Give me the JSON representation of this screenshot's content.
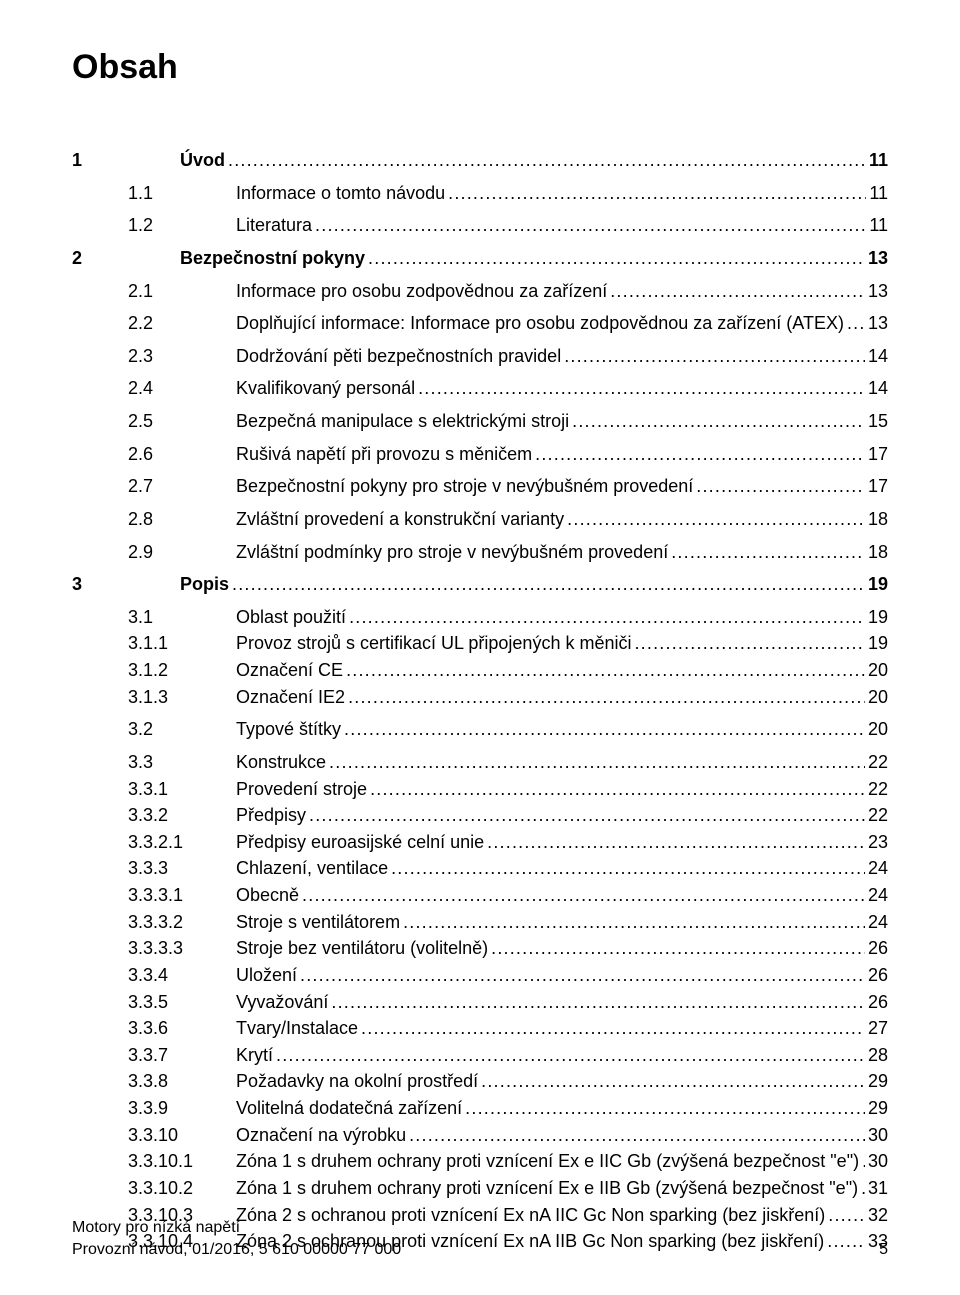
{
  "title": "Obsah",
  "footer": {
    "line1": "Motory pro nízká napětí",
    "line2_left": "Provozní návod, 01/2016, 5 610 00000 77 000",
    "line2_right": "5"
  },
  "toc": [
    {
      "bold": true,
      "num": "1",
      "label": "Úvod",
      "page": "11",
      "spacer": true
    },
    {
      "bold": false,
      "num": "1.1",
      "label": "Informace o tomto návodu",
      "page": "11",
      "spacer": true
    },
    {
      "bold": false,
      "num": "1.2",
      "label": "Literatura",
      "page": "11",
      "spacer": true
    },
    {
      "bold": true,
      "num": "2",
      "label": "Bezpečnostní pokyny",
      "page": "13",
      "spacer": true
    },
    {
      "bold": false,
      "num": "2.1",
      "label": "Informace pro osobu zodpovědnou za zařízení",
      "page": "13",
      "spacer": true
    },
    {
      "bold": false,
      "num": "2.2",
      "label": "Doplňující informace: Informace pro osobu zodpovědnou za zařízení (ATEX)",
      "page": "13",
      "spacer": true
    },
    {
      "bold": false,
      "num": "2.3",
      "label": "Dodržování pěti bezpečnostních pravidel",
      "page": "14",
      "spacer": true
    },
    {
      "bold": false,
      "num": "2.4",
      "label": "Kvalifikovaný personál",
      "page": "14",
      "spacer": true
    },
    {
      "bold": false,
      "num": "2.5",
      "label": "Bezpečná manipulace s elektrickými stroji",
      "page": "15",
      "spacer": true
    },
    {
      "bold": false,
      "num": "2.6",
      "label": "Rušivá napětí při provozu s měničem",
      "page": "17",
      "spacer": true
    },
    {
      "bold": false,
      "num": "2.7",
      "label": "Bezpečnostní pokyny pro stroje v nevýbušném provedení",
      "page": "17",
      "spacer": true
    },
    {
      "bold": false,
      "num": "2.8",
      "label": "Zvláštní provedení a konstrukční varianty",
      "page": "18",
      "spacer": true
    },
    {
      "bold": false,
      "num": "2.9",
      "label": "Zvláštní podmínky pro stroje v nevýbušném provedení",
      "page": "18",
      "spacer": true
    },
    {
      "bold": true,
      "num": "3",
      "label": "Popis",
      "page": "19",
      "spacer": true
    },
    {
      "bold": false,
      "num": "3.1",
      "label": "Oblast použití",
      "page": "19",
      "spacer": true
    },
    {
      "bold": false,
      "num": "3.1.1",
      "label": "Provoz strojů s certifikací UL připojených k měniči",
      "page": "19",
      "spacer": false
    },
    {
      "bold": false,
      "num": "3.1.2",
      "label": "Označení CE",
      "page": "20",
      "spacer": false
    },
    {
      "bold": false,
      "num": "3.1.3",
      "label": "Označení IE2",
      "page": "20",
      "spacer": false
    },
    {
      "bold": false,
      "num": "3.2",
      "label": "Typové štítky",
      "page": "20",
      "spacer": true
    },
    {
      "bold": false,
      "num": "3.3",
      "label": "Konstrukce",
      "page": "22",
      "spacer": true
    },
    {
      "bold": false,
      "num": "3.3.1",
      "label": "Provedení stroje",
      "page": "22",
      "spacer": false
    },
    {
      "bold": false,
      "num": "3.3.2",
      "label": "Předpisy",
      "page": "22",
      "spacer": false
    },
    {
      "bold": false,
      "num": "3.3.2.1",
      "label": "Předpisy euroasijské celní unie",
      "page": "23",
      "spacer": false
    },
    {
      "bold": false,
      "num": "3.3.3",
      "label": "Chlazení, ventilace",
      "page": "24",
      "spacer": false
    },
    {
      "bold": false,
      "num": "3.3.3.1",
      "label": "Obecně",
      "page": "24",
      "spacer": false
    },
    {
      "bold": false,
      "num": "3.3.3.2",
      "label": "Stroje s ventilátorem",
      "page": "24",
      "spacer": false
    },
    {
      "bold": false,
      "num": "3.3.3.3",
      "label": "Stroje bez ventilátoru (volitelně)",
      "page": "26",
      "spacer": false
    },
    {
      "bold": false,
      "num": "3.3.4",
      "label": "Uložení",
      "page": "26",
      "spacer": false
    },
    {
      "bold": false,
      "num": "3.3.5",
      "label": "Vyvažování",
      "page": "26",
      "spacer": false
    },
    {
      "bold": false,
      "num": "3.3.6",
      "label": "Tvary/Instalace",
      "page": "27",
      "spacer": false
    },
    {
      "bold": false,
      "num": "3.3.7",
      "label": "Krytí",
      "page": "28",
      "spacer": false
    },
    {
      "bold": false,
      "num": "3.3.8",
      "label": "Požadavky na okolní prostředí",
      "page": "29",
      "spacer": false
    },
    {
      "bold": false,
      "num": "3.3.9",
      "label": "Volitelná dodatečná zařízení",
      "page": "29",
      "spacer": false
    },
    {
      "bold": false,
      "num": "3.3.10",
      "label": "Označení na výrobku",
      "page": "30",
      "spacer": false
    },
    {
      "bold": false,
      "num": "3.3.10.1",
      "label": "Zóna 1 s druhem ochrany proti vznícení Ex e IIC Gb (zvýšená bezpečnost \"e\")",
      "page": "30",
      "spacer": false
    },
    {
      "bold": false,
      "num": "3.3.10.2",
      "label": "Zóna 1 s druhem ochrany proti vznícení Ex e IIB Gb (zvýšená bezpečnost \"e\")",
      "page": "31",
      "spacer": false
    },
    {
      "bold": false,
      "num": "3.3.10.3",
      "label": "Zóna 2 s ochranou proti vznícení Ex nA IIC Gc Non sparking (bez jiskření)",
      "page": "32",
      "spacer": false
    },
    {
      "bold": false,
      "num": "3.3.10.4",
      "label": "Zóna 2 s ochranou proti vznícení Ex nA IIB Gc Non sparking (bez jiskření)",
      "page": "33",
      "spacer": false
    }
  ]
}
